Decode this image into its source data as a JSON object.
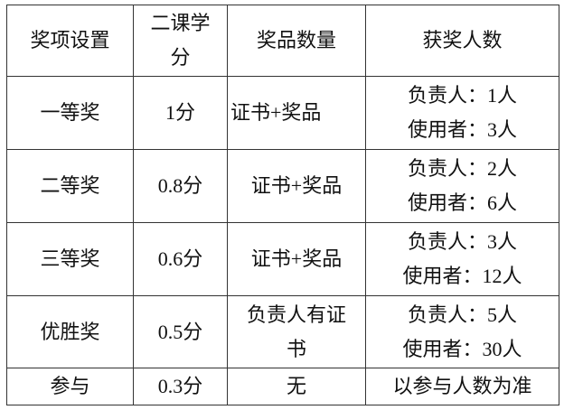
{
  "headers": [
    "奖项设置",
    "二课学分",
    "奖品数量",
    "获奖人数"
  ],
  "rows": [
    {
      "award": "一等奖",
      "credit": "1分",
      "prize": "证书+奖品",
      "winners": [
        "负责人：1人",
        "使用者：3人"
      ]
    },
    {
      "award": "二等奖",
      "credit": "0.8分",
      "prize": "证书+奖品",
      "winners": [
        "负责人：2人",
        "使用者：6人"
      ]
    },
    {
      "award": "三等奖",
      "credit": "0.6分",
      "prize": "证书+奖品",
      "winners": [
        "负责人：3人",
        "使用者：12人"
      ]
    },
    {
      "award": "优胜奖",
      "credit": "0.5分",
      "prize": "负责人有证书",
      "winners": [
        "负责人：5人",
        "使用者：30人"
      ]
    },
    {
      "award": "参与",
      "credit": "0.3分",
      "prize": "无",
      "winners": [
        "以参与人数为准"
      ]
    }
  ]
}
